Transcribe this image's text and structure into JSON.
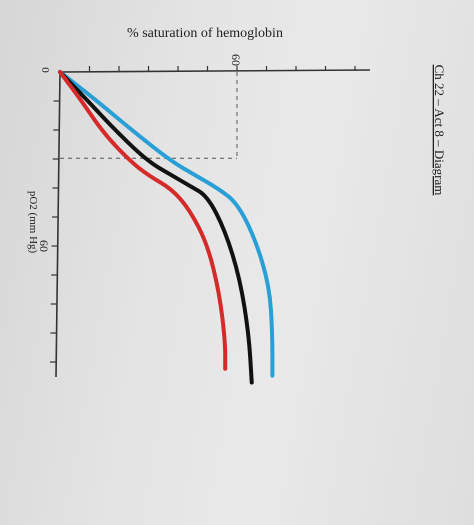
{
  "page": {
    "heading": "Ch 22 – Act 8 – Diagram"
  },
  "chart_data": {
    "type": "line",
    "title": "",
    "ylabel": "% saturation of hemoglobin",
    "xlabel": "pO2 (mm Hg)",
    "origin_label": "0",
    "x_tick_labels": [
      "60"
    ],
    "y_tick_labels": [
      "60"
    ],
    "reference_lines": [
      {
        "axis": "x",
        "value": 60,
        "style": "dashed"
      },
      {
        "axis": "y",
        "value": 60,
        "style": "dashed"
      }
    ],
    "xlim": [
      0,
      100
    ],
    "ylim": [
      0,
      100
    ],
    "series": [
      {
        "color": "#2a9fd6",
        "x": [
          0,
          10,
          20,
          30,
          40,
          50,
          60,
          70,
          80,
          90,
          100
        ],
        "y": [
          0,
          14,
          28,
          42,
          54,
          66,
          74,
          82,
          86,
          89,
          91
        ]
      },
      {
        "color": "#111111",
        "x": [
          0,
          10,
          20,
          30,
          40,
          50,
          60,
          70,
          80,
          90,
          100
        ],
        "y": [
          0,
          11,
          22,
          33,
          42,
          52,
          60,
          70,
          77,
          81,
          84
        ]
      },
      {
        "color": "#d42a2a",
        "x": [
          0,
          10,
          20,
          30,
          40,
          50,
          60,
          70,
          80,
          90,
          100
        ],
        "y": [
          0,
          9,
          18,
          27,
          35,
          44,
          52,
          62,
          68,
          73,
          76
        ]
      }
    ]
  }
}
